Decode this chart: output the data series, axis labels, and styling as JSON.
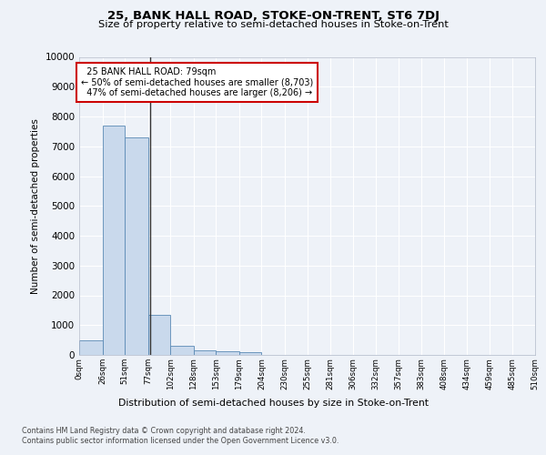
{
  "title": "25, BANK HALL ROAD, STOKE-ON-TRENT, ST6 7DJ",
  "subtitle": "Size of property relative to semi-detached houses in Stoke-on-Trent",
  "xlabel": "Distribution of semi-detached houses by size in Stoke-on-Trent",
  "ylabel": "Number of semi-detached properties",
  "footer1": "Contains HM Land Registry data © Crown copyright and database right 2024.",
  "footer2": "Contains public sector information licensed under the Open Government Licence v3.0.",
  "bin_edges": [
    0,
    26,
    51,
    77,
    102,
    128,
    153,
    179,
    204,
    230,
    255,
    281,
    306,
    332,
    357,
    383,
    408,
    434,
    459,
    485,
    510
  ],
  "bin_labels": [
    "0sqm",
    "26sqm",
    "51sqm",
    "77sqm",
    "102sqm",
    "128sqm",
    "153sqm",
    "179sqm",
    "204sqm",
    "230sqm",
    "255sqm",
    "281sqm",
    "306sqm",
    "332sqm",
    "357sqm",
    "383sqm",
    "408sqm",
    "434sqm",
    "459sqm",
    "485sqm",
    "510sqm"
  ],
  "bar_values": [
    500,
    7700,
    7300,
    1350,
    320,
    150,
    115,
    90,
    0,
    0,
    0,
    0,
    0,
    0,
    0,
    0,
    0,
    0,
    0,
    0
  ],
  "bar_color": "#c9d9ec",
  "bar_edge_color": "#5a8ab5",
  "property_size": 79,
  "property_label": "25 BANK HALL ROAD: 79sqm",
  "pct_smaller": 50,
  "count_smaller": 8703,
  "pct_larger": 47,
  "count_larger": 8206,
  "vline_color": "#333333",
  "annotation_box_color": "#cc0000",
  "ylim": [
    0,
    10000
  ],
  "yticks": [
    0,
    1000,
    2000,
    3000,
    4000,
    5000,
    6000,
    7000,
    8000,
    9000,
    10000
  ],
  "bg_color": "#eef2f8",
  "plot_bg_color": "#eef2f8",
  "grid_color": "#ffffff"
}
